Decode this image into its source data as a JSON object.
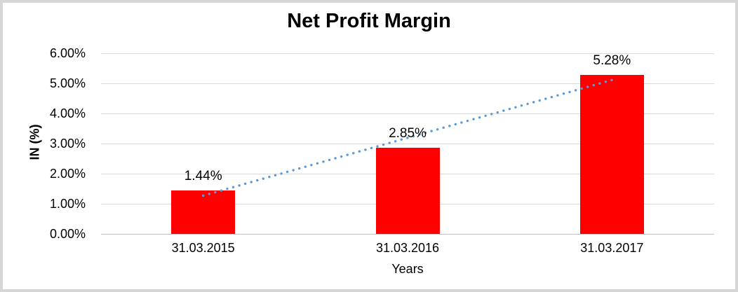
{
  "chart_data": {
    "type": "bar",
    "title": "Net Profit Margin",
    "xlabel": "Years",
    "ylabel": "IN (%)",
    "categories": [
      "31.03.2015",
      "31.03.2016",
      "31.03.2017"
    ],
    "values": [
      1.44,
      2.85,
      5.28
    ],
    "data_labels": [
      "1.44%",
      "2.85%",
      "5.28%"
    ],
    "ylim": [
      0,
      6
    ],
    "ytick_step": 1,
    "ytick_labels": [
      "0.00%",
      "1.00%",
      "2.00%",
      "3.00%",
      "4.00%",
      "5.00%",
      "6.00%"
    ],
    "grid": true,
    "legend": "none",
    "colors": {
      "bar": "#ff0000",
      "trendline": "#5b9bd5",
      "gridline": "#d9d9d9",
      "axis_line": "#bfbfbf",
      "text": "#000000",
      "frame_border": "#d6d6d6"
    },
    "trendline": {
      "type": "linear",
      "style": "dotted"
    }
  }
}
